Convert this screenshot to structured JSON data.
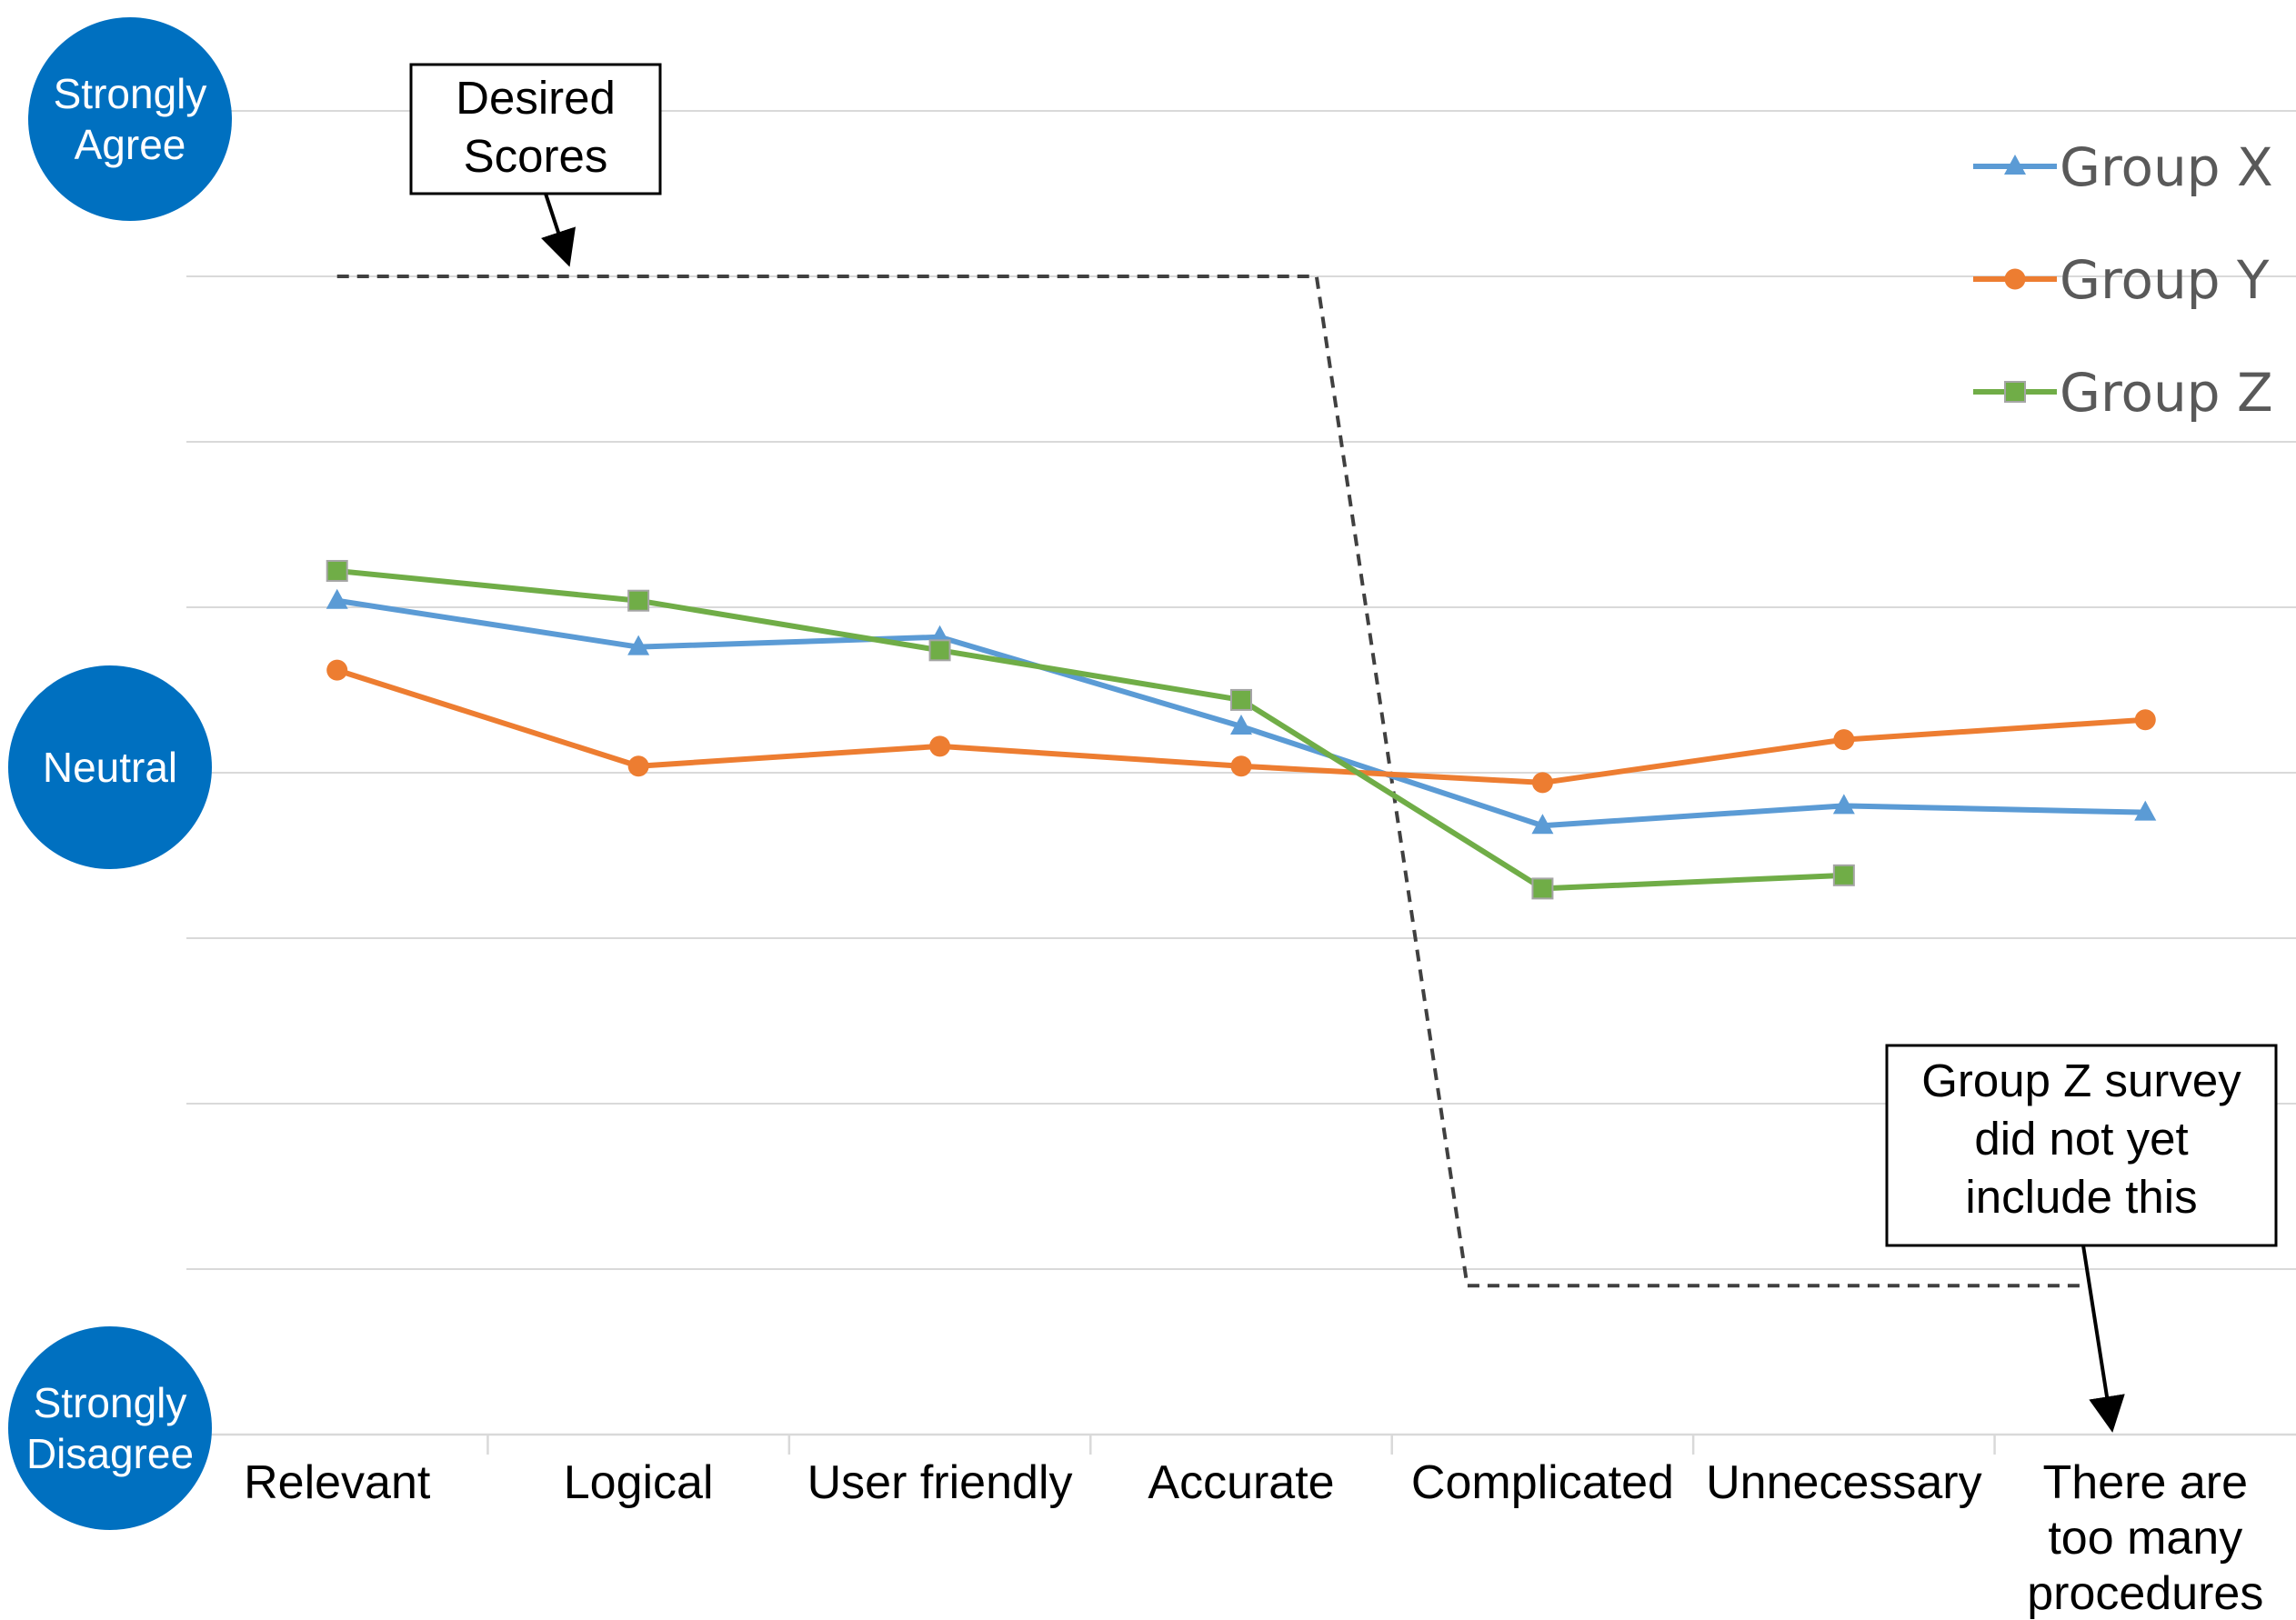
{
  "chart_data": {
    "type": "line",
    "categories": [
      "Relevant",
      "Logical",
      "User friendly",
      "Accurate",
      "Complicated",
      "Unnecessary",
      "There are too many procedures"
    ],
    "ylim": [
      1,
      5
    ],
    "grid": true,
    "legend_position": "top-right",
    "y_scale_labels": [
      {
        "value": 5,
        "text": "Strongly Agree"
      },
      {
        "value": 3,
        "text": "Neutral"
      },
      {
        "value": 1,
        "text": "Strongly Disagree"
      }
    ],
    "series": [
      {
        "name": "Group X",
        "color": "#5B9BD5",
        "marker": "triangle",
        "values": [
          3.52,
          3.38,
          3.41,
          3.14,
          2.84,
          2.9,
          2.88
        ]
      },
      {
        "name": "Group Y",
        "color": "#ED7D31",
        "marker": "circle",
        "values": [
          3.31,
          3.02,
          3.08,
          3.02,
          2.97,
          3.1,
          3.16
        ]
      },
      {
        "name": "Group Z",
        "color": "#70AD47",
        "marker": "square",
        "values": [
          3.61,
          3.52,
          3.37,
          3.22,
          2.65,
          2.69,
          null
        ]
      }
    ],
    "desired_scores": {
      "color": "#404040",
      "style": "dashed",
      "high_value": 4.5,
      "low_value": 1.45,
      "points": [
        [
          0,
          4.5
        ],
        [
          3.25,
          4.5
        ],
        [
          3.75,
          1.45
        ],
        [
          5.8,
          1.45
        ]
      ]
    },
    "annotations": [
      {
        "id": "desired",
        "lines": [
          "Desired",
          "Scores"
        ]
      },
      {
        "id": "groupz-note",
        "lines": [
          "Group Z survey",
          "did not yet",
          "include this"
        ]
      }
    ]
  }
}
